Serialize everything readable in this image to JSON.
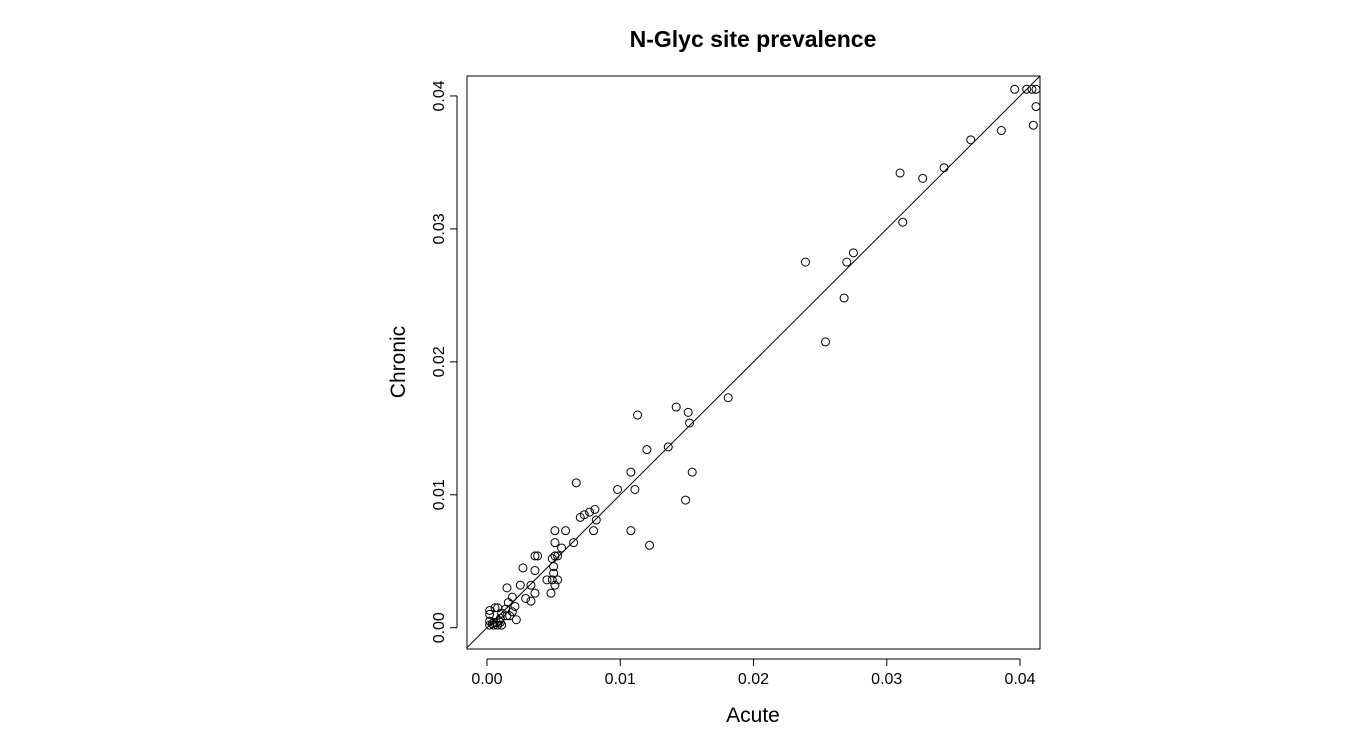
{
  "chart_data": {
    "type": "scatter",
    "title": "N-Glyc site prevalence",
    "xlabel": "Acute",
    "ylabel": "Chronic",
    "xlim": [
      -0.0015,
      0.0415
    ],
    "ylim": [
      -0.0016,
      0.0415
    ],
    "xticks": [
      "0.00",
      "0.01",
      "0.02",
      "0.03",
      "0.04"
    ],
    "yticks": [
      "0.00",
      "0.01",
      "0.02",
      "0.03",
      "0.04"
    ],
    "reference_line": {
      "type": "identity",
      "slope": 1,
      "intercept": 0
    },
    "grid": false,
    "points": [
      [
        0.0396,
        0.0405
      ],
      [
        0.0405,
        0.0405
      ],
      [
        0.0409,
        0.0405
      ],
      [
        0.0412,
        0.0405
      ],
      [
        0.0412,
        0.0392
      ],
      [
        0.041,
        0.0378
      ],
      [
        0.0386,
        0.0374
      ],
      [
        0.0363,
        0.0367
      ],
      [
        0.0343,
        0.0346
      ],
      [
        0.0327,
        0.0338
      ],
      [
        0.031,
        0.0342
      ],
      [
        0.0312,
        0.0305
      ],
      [
        0.0275,
        0.0282
      ],
      [
        0.027,
        0.0275
      ],
      [
        0.0239,
        0.0275
      ],
      [
        0.0268,
        0.0248
      ],
      [
        0.0254,
        0.0215
      ],
      [
        0.0181,
        0.0173
      ],
      [
        0.0142,
        0.0166
      ],
      [
        0.0113,
        0.016
      ],
      [
        0.0151,
        0.0162
      ],
      [
        0.0152,
        0.0154
      ],
      [
        0.012,
        0.0134
      ],
      [
        0.0136,
        0.0136
      ],
      [
        0.0108,
        0.0117
      ],
      [
        0.0154,
        0.0117
      ],
      [
        0.0098,
        0.0104
      ],
      [
        0.0111,
        0.0104
      ],
      [
        0.0149,
        0.0096
      ],
      [
        0.0067,
        0.0109
      ],
      [
        0.0081,
        0.0089
      ],
      [
        0.0077,
        0.0087
      ],
      [
        0.0073,
        0.0085
      ],
      [
        0.007,
        0.0083
      ],
      [
        0.0082,
        0.0081
      ],
      [
        0.0108,
        0.0073
      ],
      [
        0.008,
        0.0073
      ],
      [
        0.0122,
        0.0062
      ],
      [
        0.0059,
        0.0073
      ],
      [
        0.0051,
        0.0073
      ],
      [
        0.0051,
        0.0064
      ],
      [
        0.0065,
        0.0064
      ],
      [
        0.0056,
        0.006
      ],
      [
        0.0053,
        0.0054
      ],
      [
        0.0051,
        0.0054
      ],
      [
        0.0049,
        0.0052
      ],
      [
        0.0036,
        0.0054
      ],
      [
        0.0038,
        0.0054
      ],
      [
        0.005,
        0.0046
      ],
      [
        0.005,
        0.0041
      ],
      [
        0.0036,
        0.0043
      ],
      [
        0.0027,
        0.0045
      ],
      [
        0.0045,
        0.0036
      ],
      [
        0.0049,
        0.0036
      ],
      [
        0.0053,
        0.0036
      ],
      [
        0.0051,
        0.0032
      ],
      [
        0.0033,
        0.0032
      ],
      [
        0.0025,
        0.0032
      ],
      [
        0.0015,
        0.003
      ],
      [
        0.0048,
        0.0026
      ],
      [
        0.0036,
        0.0026
      ],
      [
        0.0029,
        0.0022
      ],
      [
        0.0033,
        0.002
      ],
      [
        0.0019,
        0.0023
      ],
      [
        0.0016,
        0.0019
      ],
      [
        0.0021,
        0.0016
      ],
      [
        0.0014,
        0.0014
      ],
      [
        0.0019,
        0.0012
      ],
      [
        0.0015,
        0.0009
      ],
      [
        0.0017,
        0.0009
      ],
      [
        0.0022,
        0.0006
      ],
      [
        0.0011,
        0.0011
      ],
      [
        0.001,
        0.0007
      ],
      [
        0.0008,
        0.0015
      ],
      [
        0.0006,
        0.0015
      ],
      [
        0.0002,
        0.0013
      ],
      [
        0.0002,
        0.001
      ],
      [
        0.0002,
        0.0005
      ],
      [
        0.0005,
        0.0004
      ],
      [
        0.0007,
        0.0004
      ],
      [
        0.001,
        0.0004
      ],
      [
        0.0008,
        0.0002
      ],
      [
        0.0005,
        0.0002
      ],
      [
        0.0002,
        0.0002
      ],
      [
        0.0011,
        0.0002
      ],
      [
        0.0004,
        0.0003
      ],
      [
        0.0009,
        0.0005
      ]
    ]
  }
}
